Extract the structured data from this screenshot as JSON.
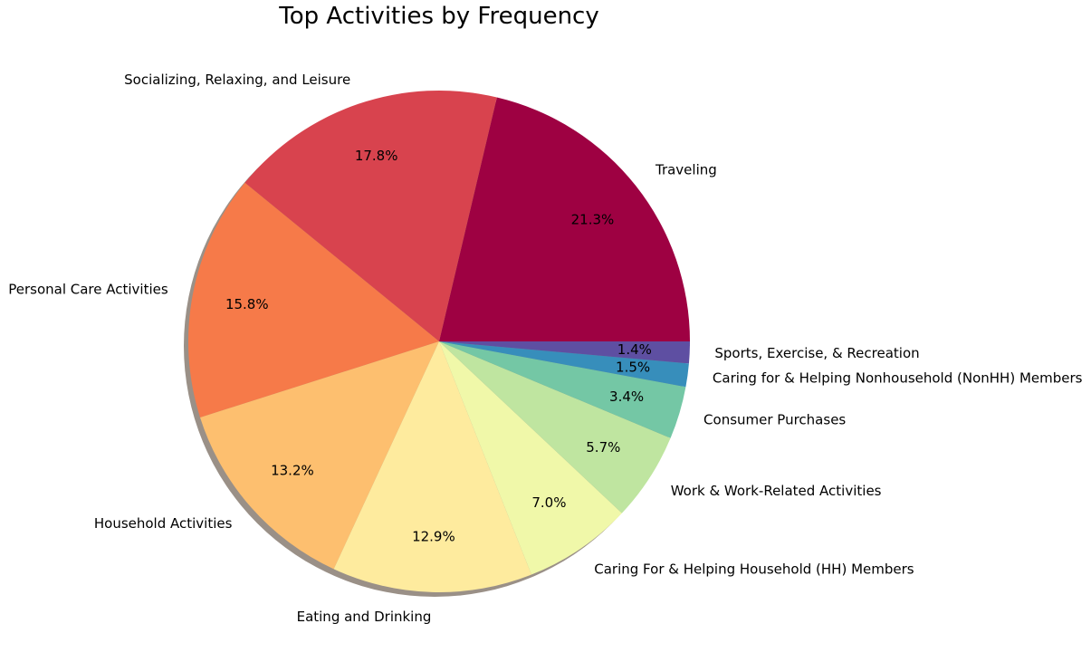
{
  "chart_data": {
    "type": "pie",
    "title": "Top Activities by Frequency",
    "shadow": true,
    "categories": [
      "Traveling",
      "Socializing, Relaxing, and Leisure",
      "Personal Care Activities",
      "Household Activities",
      "Eating and Drinking",
      "Caring For & Helping Household (HH) Members",
      "Work & Work-Related Activities",
      "Consumer Purchases",
      "Caring for & Helping Nonhousehold (NonHH) Members",
      "Sports, Exercise, & Recreation"
    ],
    "values": [
      21.3,
      17.8,
      15.8,
      13.2,
      12.9,
      7.0,
      5.7,
      3.4,
      1.5,
      1.4
    ],
    "value_labels": [
      "21.3%",
      "17.8%",
      "15.8%",
      "13.2%",
      "12.9%",
      "7.0%",
      "5.7%",
      "3.4%",
      "1.5%",
      "1.4%"
    ],
    "colors": [
      "#9e0142",
      "#d8434e",
      "#f67a49",
      "#fdbf6f",
      "#feeb9e",
      "#f0f8a9",
      "#bfe5a0",
      "#74c7a5",
      "#378ebb",
      "#5e4fa2"
    ],
    "start_angle": 0,
    "direction": "counterclockwise"
  }
}
